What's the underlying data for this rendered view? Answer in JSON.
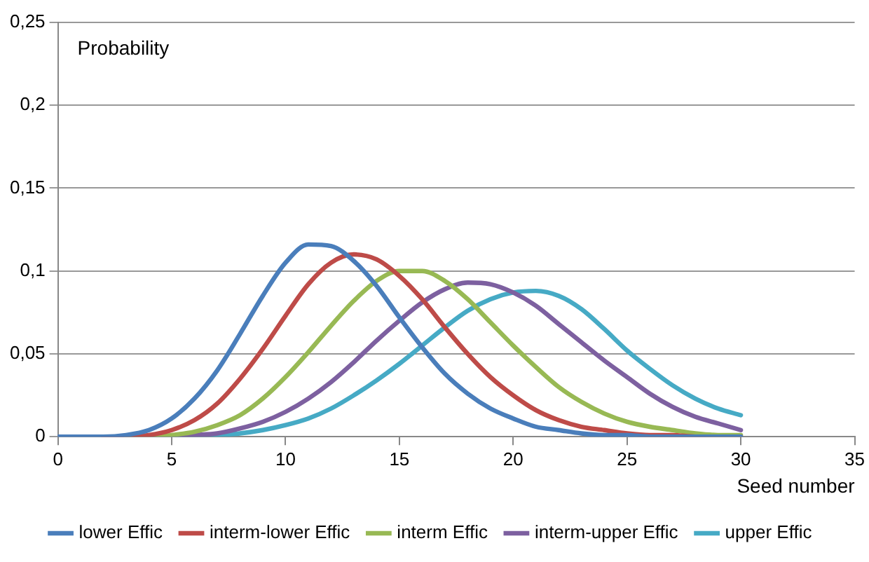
{
  "chart_data": {
    "type": "line",
    "ylabel": "Probability",
    "xlabel": "Seed number",
    "x": [
      0,
      1,
      2,
      3,
      4,
      5,
      6,
      7,
      8,
      9,
      10,
      11,
      12,
      13,
      14,
      15,
      16,
      17,
      18,
      19,
      20,
      21,
      22,
      23,
      24,
      25,
      26,
      27,
      28,
      29,
      30
    ],
    "series": [
      {
        "name": "lower Effic",
        "color": "#4a7ebb",
        "values": [
          0,
          0,
          0,
          0.001,
          0.004,
          0.011,
          0.023,
          0.04,
          0.062,
          0.085,
          0.105,
          0.116,
          0.115,
          0.106,
          0.091,
          0.072,
          0.054,
          0.038,
          0.026,
          0.017,
          0.011,
          0.006,
          0.004,
          0.002,
          0.001,
          0.001,
          0,
          0,
          0,
          0,
          0
        ]
      },
      {
        "name": "interm-lower Effic",
        "color": "#be4b48",
        "values": [
          null,
          null,
          0,
          0,
          0.001,
          0.004,
          0.01,
          0.02,
          0.035,
          0.053,
          0.073,
          0.092,
          0.105,
          0.11,
          0.107,
          0.097,
          0.083,
          0.066,
          0.05,
          0.036,
          0.025,
          0.016,
          0.01,
          0.006,
          0.004,
          0.002,
          0.001,
          0.001,
          0,
          0,
          0
        ]
      },
      {
        "name": "interm Effic",
        "color": "#98b954",
        "values": [
          null,
          null,
          null,
          0,
          0,
          0.001,
          0.003,
          0.007,
          0.013,
          0.023,
          0.036,
          0.051,
          0.067,
          0.082,
          0.094,
          0.1,
          0.1,
          0.094,
          0.083,
          0.069,
          0.055,
          0.042,
          0.03,
          0.021,
          0.014,
          0.009,
          0.006,
          0.004,
          0.002,
          0.001,
          0.001
        ]
      },
      {
        "name": "interm-upper Effic",
        "color": "#7d60a0",
        "values": [
          0,
          0,
          0,
          0,
          0,
          0,
          0.001,
          0.002,
          0.005,
          0.009,
          0.015,
          0.023,
          0.033,
          0.045,
          0.058,
          0.07,
          0.081,
          0.089,
          0.093,
          0.092,
          0.087,
          0.079,
          0.068,
          0.057,
          0.046,
          0.036,
          0.026,
          0.018,
          0.012,
          0.008,
          0.004
        ]
      },
      {
        "name": "upper Effic",
        "color": "#46aac5",
        "values": [
          0,
          0,
          0,
          0,
          0,
          0,
          0,
          0.001,
          0.002,
          0.004,
          0.007,
          0.011,
          0.017,
          0.025,
          0.034,
          0.044,
          0.055,
          0.066,
          0.076,
          0.083,
          0.087,
          0.088,
          0.085,
          0.077,
          0.065,
          0.052,
          0.041,
          0.031,
          0.023,
          0.017,
          0.013
        ]
      }
    ],
    "xlim": [
      0,
      35
    ],
    "xticks": [
      0,
      5,
      10,
      15,
      20,
      25,
      30,
      35
    ],
    "ylim": [
      0,
      0.25
    ],
    "yticks": [
      {
        "value": 0,
        "label": "0"
      },
      {
        "value": 0.05,
        "label": "0,05"
      },
      {
        "value": 0.1,
        "label": "0,1"
      },
      {
        "value": 0.15,
        "label": "0,15"
      },
      {
        "value": 0.2,
        "label": "0,2"
      },
      {
        "value": 0.25,
        "label": "0,25"
      }
    ],
    "grid": "y",
    "legend": "bottom",
    "marker": "none",
    "line_style": "solid"
  }
}
